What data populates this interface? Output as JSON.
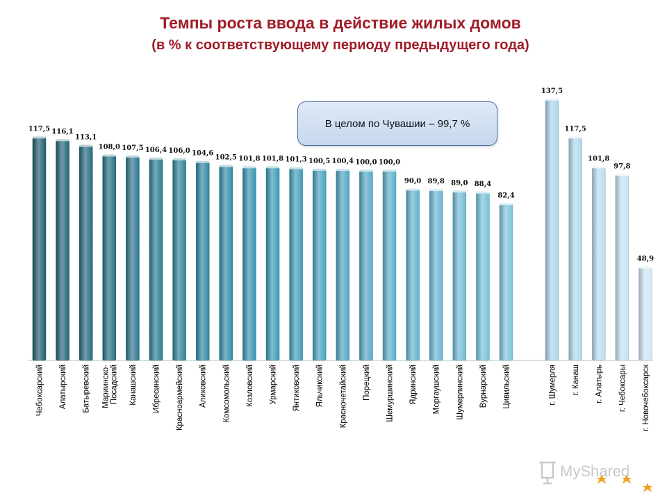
{
  "title": "Темпы роста ввода в действие жилых домов",
  "subtitle": "(в %  к соответствующему периоду предыдущего года)",
  "callout": "В целом по Чувашии – 99,7 %",
  "logo": {
    "text": "MyShared",
    "icon": "presentation-board-icon"
  },
  "colors": {
    "title": "#a01c28",
    "districts_dark": "#1f5f70",
    "districts_mid": "#3b98b6",
    "districts_light": "#7ec4dd",
    "cities": "#a9d4ea"
  },
  "chart_data": {
    "type": "bar",
    "title": "Темпы роста ввода в действие жилых домов",
    "subtitle": "(в %  к соответствующему периоду предыдущего года)",
    "xlabel": "",
    "ylabel": "",
    "ylim": [
      0,
      140
    ],
    "grid": false,
    "legend": "none",
    "groups": [
      {
        "name": "districts",
        "categories": [
          [
            "Чебоксарский"
          ],
          [
            "Алатырский"
          ],
          [
            "Батыревский"
          ],
          [
            "Мариинско-",
            "Посадский"
          ],
          [
            "Канашский"
          ],
          [
            "Ибресинский"
          ],
          [
            "Красноармейский"
          ],
          [
            "Аликовский"
          ],
          [
            "Комсомольский"
          ],
          [
            "Козловский"
          ],
          [
            "Урмарский"
          ],
          [
            "Янтиковский"
          ],
          [
            "Яльчикский"
          ],
          [
            "Красночетайский"
          ],
          [
            "Порецкий"
          ],
          [
            "Шемуршинский"
          ],
          [
            "Ядринский"
          ],
          [
            "Моргаушский"
          ],
          [
            "Шумерлинский"
          ],
          [
            "Вурнарский"
          ],
          [
            "Цивильский"
          ]
        ],
        "values": [
          117.5,
          116.1,
          113.1,
          108.0,
          107.5,
          106.4,
          106.0,
          104.6,
          102.5,
          101.8,
          101.8,
          101.3,
          100.5,
          100.4,
          100.0,
          100.0,
          90.0,
          89.8,
          89.0,
          88.4,
          82.4
        ],
        "labels": [
          "117,5",
          "116,1",
          "113,1",
          "108,0",
          "107,5",
          "106,4",
          "106,0",
          "104,6",
          "102,5",
          "101,8",
          "101,8",
          "101,3",
          "100,5",
          "100,4",
          "100,0",
          "100,0",
          "90,0",
          "89,8",
          "89,0",
          "88,4",
          "82,4"
        ]
      },
      {
        "name": "cities",
        "categories": [
          [
            "г. Шумерля"
          ],
          [
            "г. Канаш"
          ],
          [
            "г. Алатырь"
          ],
          [
            "г. Чебоксары"
          ],
          [
            "г. Новочебоксарск"
          ]
        ],
        "values": [
          137.5,
          117.5,
          101.8,
          97.8,
          48.9
        ],
        "labels": [
          "137,5",
          "117,5",
          "101,8",
          "97,8",
          "48,9"
        ]
      }
    ]
  }
}
